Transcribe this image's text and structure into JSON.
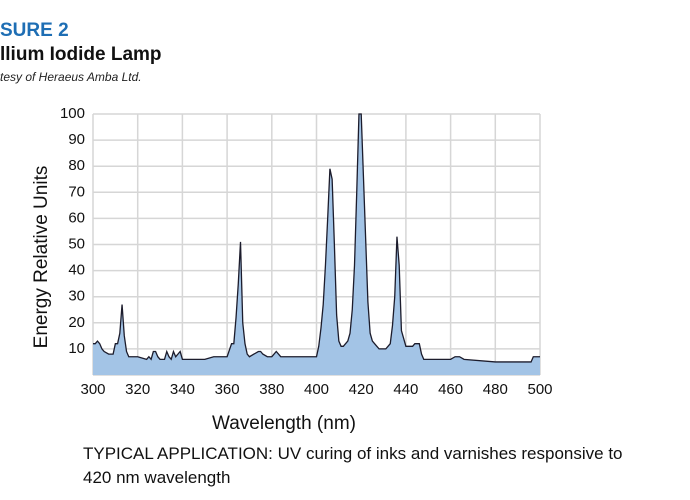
{
  "chart_data": {
    "type": "area",
    "figure_label": "SURE 2",
    "title": "llium Iodide Lamp",
    "subtitle": "tesy of Heraeus Amba Ltd.",
    "xlabel": "Wavelength (nm)",
    "ylabel": "Energy Relative Units",
    "caption": "TYPICAL APPLICATION: UV curing of inks and varnishes responsive to 420 nm wavelength",
    "color": "#a3c4e6",
    "line_color": "#1c1c2c",
    "grid": true,
    "xlim": [
      300,
      500
    ],
    "xticks": [
      300,
      320,
      340,
      360,
      380,
      400,
      420,
      440,
      460,
      480,
      500
    ],
    "ylim": [
      0,
      100
    ],
    "yticks": [
      10,
      20,
      30,
      40,
      50,
      60,
      70,
      80,
      90,
      100
    ],
    "x": [
      300,
      301,
      302,
      303,
      304,
      305,
      307,
      309,
      310,
      311,
      312,
      313,
      314,
      315,
      316,
      320,
      324,
      325,
      326,
      327,
      328,
      329,
      330,
      332,
      333,
      334,
      335,
      336,
      337,
      338,
      339,
      340,
      350,
      354,
      360,
      362,
      363,
      364,
      365,
      366,
      367,
      368,
      369,
      370,
      372,
      374,
      375,
      376,
      378,
      380,
      382,
      384,
      390,
      400,
      401,
      402,
      403,
      404,
      405,
      406,
      407,
      408,
      409,
      410,
      411,
      412,
      413,
      414,
      415,
      416,
      417,
      418,
      419,
      420,
      421,
      422,
      423,
      424,
      425,
      426,
      427,
      428,
      431,
      432,
      433,
      434,
      435,
      436,
      437,
      438,
      439,
      440,
      443,
      444,
      446,
      447,
      448,
      460,
      462,
      464,
      466,
      480,
      496,
      497,
      500
    ],
    "values": [
      12,
      12,
      13,
      12,
      10,
      9,
      8,
      8,
      12,
      12,
      16,
      27,
      15,
      9,
      7,
      7,
      6,
      7,
      6,
      9,
      9,
      7,
      6,
      6,
      9,
      7,
      6,
      9,
      7,
      8,
      9,
      6,
      6,
      7,
      7,
      12,
      12,
      22,
      35,
      51,
      20,
      12,
      8,
      7,
      8,
      9,
      9,
      8,
      7,
      7,
      9,
      7,
      7,
      7,
      11,
      18,
      27,
      42,
      60,
      79,
      75,
      50,
      23,
      13,
      11,
      11,
      12,
      13,
      16,
      25,
      42,
      70,
      100,
      100,
      76,
      52,
      28,
      16,
      13,
      12,
      11,
      10,
      10,
      11,
      12,
      19,
      30,
      53,
      42,
      17,
      14,
      11,
      11,
      12,
      12,
      8,
      6,
      6,
      7,
      7,
      6,
      5,
      5,
      7,
      7
    ]
  }
}
